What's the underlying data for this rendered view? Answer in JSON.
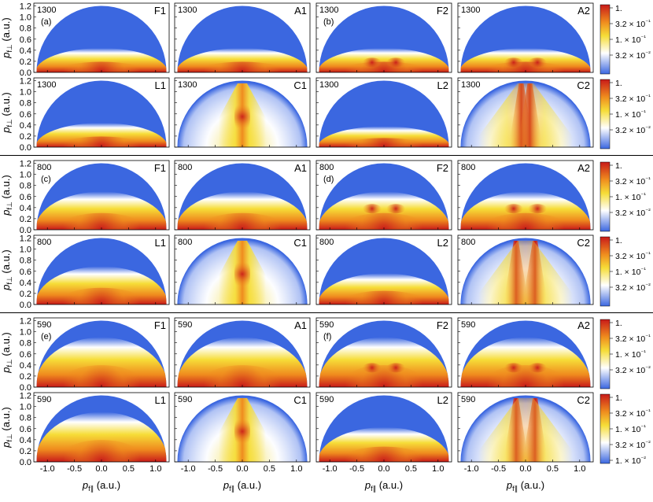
{
  "figure": {
    "ylabel": "p_{f⊥} (a.u.)",
    "xlabel": "p_{f∥} (a.u.)",
    "yticks": [
      "0.0",
      "0.2",
      "0.4",
      "0.6",
      "0.8",
      "1.0",
      "1.2"
    ],
    "xticks": [
      "-1.0",
      "-0.5",
      "0.0",
      "0.5",
      "1.0"
    ],
    "colorbar_ticks_top": [
      "1.",
      "3.2 × 10⁻¹",
      "1. × 10⁻¹",
      "3.2 × 10⁻²"
    ],
    "colorbar_ticks_bottom": [
      "1.",
      "3.2 × 10⁻¹",
      "1. × 10⁻¹",
      "3.2 × 10⁻²",
      "1. × 10⁻²"
    ],
    "colors": {
      "low": "#3b67e0",
      "white": "#ffffff",
      "yellow": "#f6dd38",
      "orange": "#ef8b1e",
      "high": "#c81a1a"
    }
  },
  "chart_data": [
    {
      "type": "heatmap",
      "group": "1300",
      "scale": "log",
      "color_range": [
        0.01,
        1
      ],
      "xlim": [
        -1.25,
        1.25
      ],
      "ylim": [
        0,
        1.25
      ],
      "panels": [
        {
          "row": 0,
          "col": 0,
          "wavelength": "1300",
          "tag": "(a)",
          "label": "F1"
        },
        {
          "row": 0,
          "col": 1,
          "wavelength": "1300",
          "tag": "",
          "label": "A1"
        },
        {
          "row": 0,
          "col": 2,
          "wavelength": "1300",
          "tag": "(b)",
          "label": "F2"
        },
        {
          "row": 0,
          "col": 3,
          "wavelength": "1300",
          "tag": "",
          "label": "A2"
        },
        {
          "row": 1,
          "col": 0,
          "wavelength": "1300",
          "tag": "",
          "label": "L1"
        },
        {
          "row": 1,
          "col": 1,
          "wavelength": "1300",
          "tag": "",
          "label": "C1"
        },
        {
          "row": 1,
          "col": 2,
          "wavelength": "1300",
          "tag": "",
          "label": "L2"
        },
        {
          "row": 1,
          "col": 3,
          "wavelength": "1300",
          "tag": "",
          "label": "C2"
        }
      ]
    },
    {
      "type": "heatmap",
      "group": "800",
      "scale": "log",
      "color_range": [
        0.01,
        1
      ],
      "xlim": [
        -1.25,
        1.25
      ],
      "ylim": [
        0,
        1.25
      ],
      "panels": [
        {
          "row": 2,
          "col": 0,
          "wavelength": "800",
          "tag": "(c)",
          "label": "F1"
        },
        {
          "row": 2,
          "col": 1,
          "wavelength": "800",
          "tag": "",
          "label": "A1"
        },
        {
          "row": 2,
          "col": 2,
          "wavelength": "800",
          "tag": "(d)",
          "label": "F2"
        },
        {
          "row": 2,
          "col": 3,
          "wavelength": "800",
          "tag": "",
          "label": "A2"
        },
        {
          "row": 3,
          "col": 0,
          "wavelength": "800",
          "tag": "",
          "label": "L1"
        },
        {
          "row": 3,
          "col": 1,
          "wavelength": "800",
          "tag": "",
          "label": "C1"
        },
        {
          "row": 3,
          "col": 2,
          "wavelength": "800",
          "tag": "",
          "label": "L2"
        },
        {
          "row": 3,
          "col": 3,
          "wavelength": "800",
          "tag": "",
          "label": "C2"
        }
      ]
    },
    {
      "type": "heatmap",
      "group": "590",
      "scale": "log",
      "color_range": [
        0.01,
        1
      ],
      "xlim": [
        -1.25,
        1.25
      ],
      "ylim": [
        0,
        1.25
      ],
      "panels": [
        {
          "row": 4,
          "col": 0,
          "wavelength": "590",
          "tag": "(e)",
          "label": "F1"
        },
        {
          "row": 4,
          "col": 1,
          "wavelength": "590",
          "tag": "",
          "label": "A1"
        },
        {
          "row": 4,
          "col": 2,
          "wavelength": "590",
          "tag": "(f)",
          "label": "F2"
        },
        {
          "row": 4,
          "col": 3,
          "wavelength": "590",
          "tag": "",
          "label": "A2"
        },
        {
          "row": 5,
          "col": 0,
          "wavelength": "590",
          "tag": "",
          "label": "L1"
        },
        {
          "row": 5,
          "col": 1,
          "wavelength": "590",
          "tag": "",
          "label": "C1"
        },
        {
          "row": 5,
          "col": 2,
          "wavelength": "590",
          "tag": "",
          "label": "L2"
        },
        {
          "row": 5,
          "col": 3,
          "wavelength": "590",
          "tag": "",
          "label": "C2"
        }
      ]
    }
  ]
}
